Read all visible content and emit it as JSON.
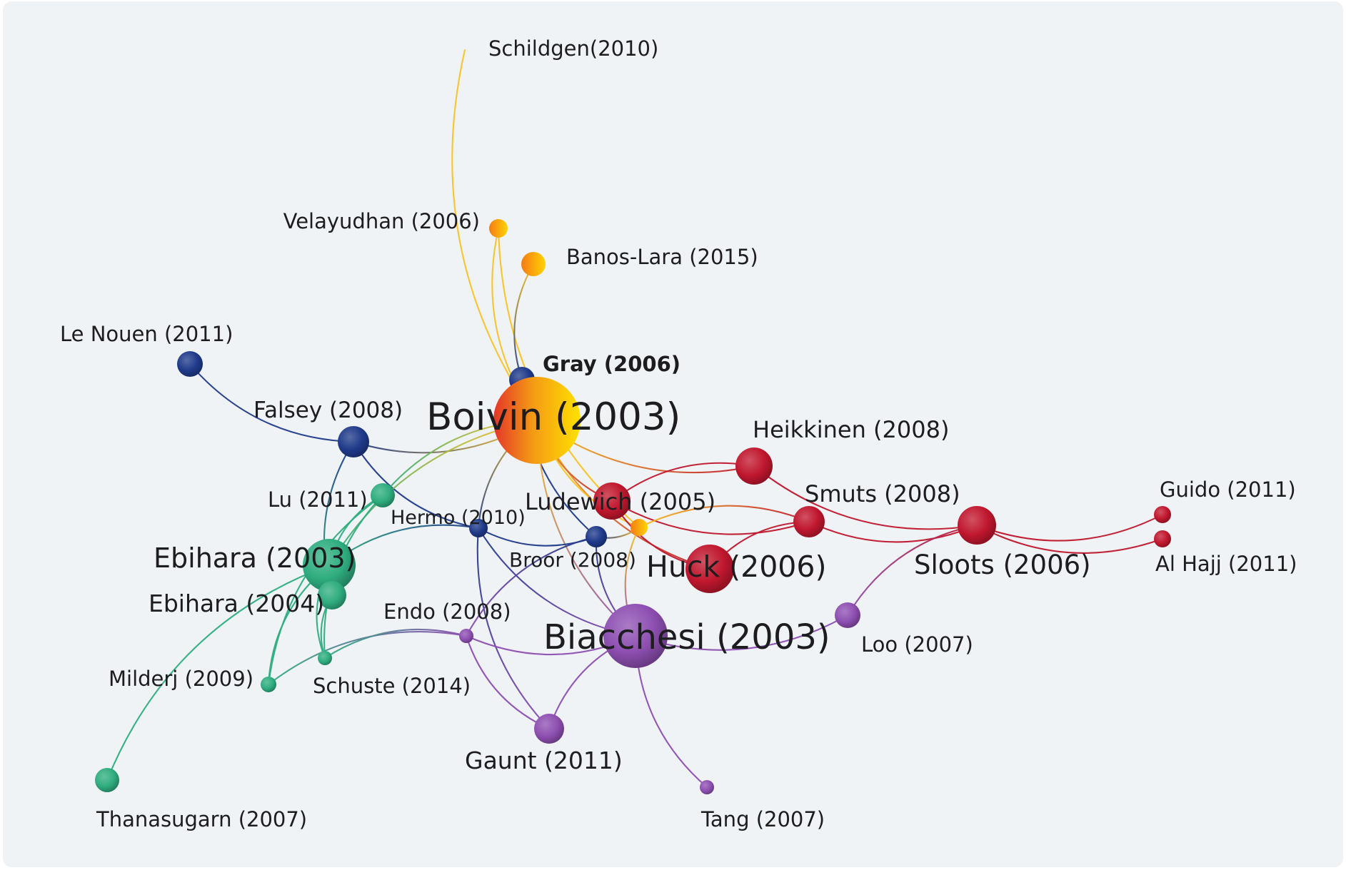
{
  "colors": {
    "background": "#eff3f6",
    "clusters": {
      "yellow": "#f7c325",
      "navy": "#1f3a8a",
      "red": "#c0172e",
      "green": "#2fad7f",
      "purple": "#8d4fb1"
    }
  },
  "nodes": [
    {
      "id": "schildgen",
      "label": "Schildgen(2010)",
      "cluster": "yellow",
      "weight": 0
    },
    {
      "id": "velayudhan",
      "label": "Velayudhan (2006)",
      "cluster": "yellow",
      "weight": 1
    },
    {
      "id": "banos",
      "label": "Banos-Lara (2015)",
      "cluster": "yellow",
      "weight": 2
    },
    {
      "id": "gray",
      "label": "Gray (2006)",
      "cluster": "navy",
      "weight": 1,
      "bold": true
    },
    {
      "id": "boivin",
      "label": "Boivin (2003)",
      "cluster": "yellow",
      "weight": 10
    },
    {
      "id": "lenouen",
      "label": "Le Nouen (2011)",
      "cluster": "navy",
      "weight": 2
    },
    {
      "id": "falsey",
      "label": "Falsey (2008)",
      "cluster": "navy",
      "weight": 3
    },
    {
      "id": "heikkinen",
      "label": "Heikkinen (2008)",
      "cluster": "red",
      "weight": 4
    },
    {
      "id": "lu",
      "label": "Lu (2011)",
      "cluster": "green",
      "weight": 2
    },
    {
      "id": "ludewich",
      "label": "Ludewich (2005)",
      "cluster": "red",
      "weight": 4
    },
    {
      "id": "hermo",
      "label": "Hermo (2010)",
      "cluster": "navy",
      "weight": 1
    },
    {
      "id": "smuts",
      "label": "Smuts (2008)",
      "cluster": "red",
      "weight": 3
    },
    {
      "id": "sloots",
      "label": "Sloots (2006)",
      "cluster": "red",
      "weight": 5
    },
    {
      "id": "guido",
      "label": "Guido (2011)",
      "cluster": "red",
      "weight": 1
    },
    {
      "id": "alhajj",
      "label": "Al Hajj (2011)",
      "cluster": "red",
      "weight": 1
    },
    {
      "id": "ebihara03",
      "label": "Ebihara (2003)",
      "cluster": "green",
      "weight": 8
    },
    {
      "id": "ebihara04",
      "label": "Ebihara (2004)",
      "cluster": "green",
      "weight": 3
    },
    {
      "id": "broor",
      "label": "Broor (2008)",
      "cluster": "navy",
      "weight": 2
    },
    {
      "id": "orange",
      "label": "",
      "cluster": "yellow",
      "weight": 1
    },
    {
      "id": "huck",
      "label": "Huck (2006)",
      "cluster": "red",
      "weight": 6
    },
    {
      "id": "endo",
      "label": "Endo (2008)",
      "cluster": "purple",
      "weight": 0
    },
    {
      "id": "biacchesi",
      "label": "Biacchesi (2003)",
      "cluster": "purple",
      "weight": 9
    },
    {
      "id": "loo",
      "label": "Loo (2007)",
      "cluster": "purple",
      "weight": 2
    },
    {
      "id": "milderj",
      "label": "Milderj (2009)",
      "cluster": "green",
      "weight": 0
    },
    {
      "id": "schuste",
      "label": "Schuste (2014)",
      "cluster": "green",
      "weight": 0
    },
    {
      "id": "gaunt",
      "label": "Gaunt (2011)",
      "cluster": "purple",
      "weight": 4
    },
    {
      "id": "thanasugarn",
      "label": "Thanasugarn (2007)",
      "cluster": "green",
      "weight": 2
    },
    {
      "id": "tang",
      "label": "Tang (2007)",
      "cluster": "purple",
      "weight": 0
    }
  ],
  "links": [
    [
      "schildgen",
      "boivin"
    ],
    [
      "velayudhan",
      "boivin"
    ],
    [
      "velayudhan",
      "orange"
    ],
    [
      "banos",
      "gray"
    ],
    [
      "gray",
      "boivin"
    ],
    [
      "gray",
      "broor"
    ],
    [
      "lenouen",
      "falsey"
    ],
    [
      "falsey",
      "boivin"
    ],
    [
      "falsey",
      "hermo"
    ],
    [
      "falsey",
      "ebihara04"
    ],
    [
      "boivin",
      "lu"
    ],
    [
      "boivin",
      "ebihara03"
    ],
    [
      "boivin",
      "hermo"
    ],
    [
      "boivin",
      "heikkinen"
    ],
    [
      "boivin",
      "huck"
    ],
    [
      "boivin",
      "ludewich"
    ],
    [
      "boivin",
      "orange"
    ],
    [
      "boivin",
      "biacchesi"
    ],
    [
      "heikkinen",
      "sloots"
    ],
    [
      "heikkinen",
      "ludewich"
    ],
    [
      "ludewich",
      "smuts"
    ],
    [
      "ludewich",
      "huck"
    ],
    [
      "smuts",
      "sloots"
    ],
    [
      "smuts",
      "huck"
    ],
    [
      "smuts",
      "orange"
    ],
    [
      "sloots",
      "guido"
    ],
    [
      "sloots",
      "alhajj"
    ],
    [
      "sloots",
      "loo"
    ],
    [
      "hermo",
      "ebihara03"
    ],
    [
      "hermo",
      "broor"
    ],
    [
      "hermo",
      "biacchesi"
    ],
    [
      "hermo",
      "gaunt"
    ],
    [
      "lu",
      "ebihara03"
    ],
    [
      "lu",
      "milderj"
    ],
    [
      "lu",
      "schuste"
    ],
    [
      "ebihara03",
      "milderj"
    ],
    [
      "ebihara03",
      "schuste"
    ],
    [
      "ebihara03",
      "thanasugarn"
    ],
    [
      "ebihara04",
      "schuste"
    ],
    [
      "broor",
      "endo"
    ],
    [
      "broor",
      "biacchesi"
    ],
    [
      "broor",
      "orange"
    ],
    [
      "endo",
      "milderj"
    ],
    [
      "endo",
      "schuste"
    ],
    [
      "endo",
      "biacchesi"
    ],
    [
      "endo",
      "gaunt"
    ],
    [
      "biacchesi",
      "gaunt"
    ],
    [
      "biacchesi",
      "loo"
    ],
    [
      "biacchesi",
      "tang"
    ],
    [
      "orange",
      "biacchesi"
    ]
  ]
}
